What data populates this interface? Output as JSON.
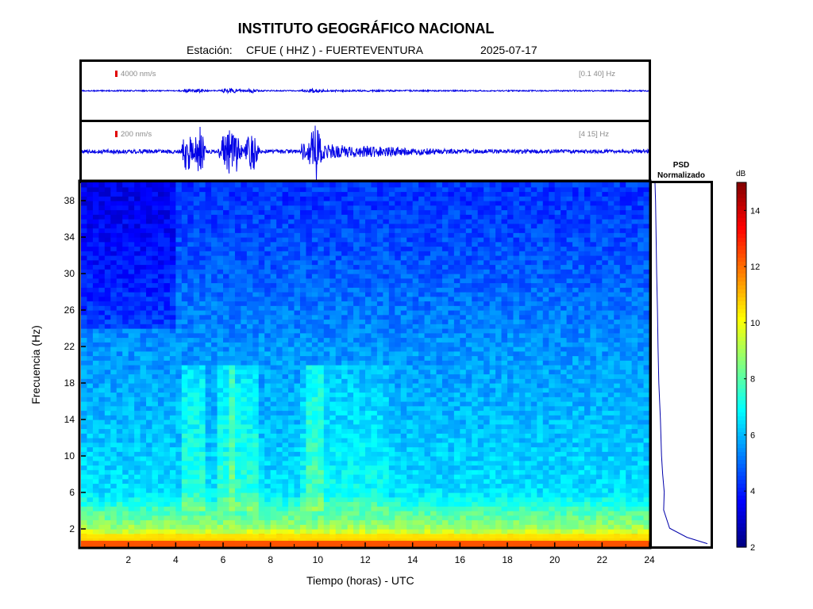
{
  "header": {
    "title": "INSTITUTO GEOGRÁFICO NACIONAL",
    "station_prefix": "Estación:",
    "station": "CFUE ( HHZ ) - FUERTEVENTURA",
    "date": "2025-07-17"
  },
  "traces": [
    {
      "scale": "4000 nm/s",
      "band": "[0.1 40] Hz"
    },
    {
      "scale": "200 nm/s",
      "band": "[4 15] Hz"
    }
  ],
  "psd": {
    "line1": "PSD",
    "line2": "Normalizado"
  },
  "colorbar": {
    "unit": "dB",
    "ticks": [
      "2",
      "4",
      "6",
      "8",
      "10",
      "12",
      "14"
    ],
    "range": [
      2,
      15
    ]
  },
  "colors": {
    "trace": "#0000e6",
    "frame": "#000000",
    "scalebar": "#e00000"
  },
  "chart_data": {
    "type": "heatmap",
    "xlabel": "Tiempo (horas) - UTC",
    "ylabel": "Frecuencia  (Hz)",
    "xlim": [
      0,
      24
    ],
    "ylim": [
      0,
      40
    ],
    "x_ticks": [
      "2",
      "4",
      "6",
      "8",
      "10",
      "12",
      "14",
      "16",
      "18",
      "20",
      "22",
      "24"
    ],
    "y_ticks": [
      "2",
      "6",
      "10",
      "14",
      "18",
      "22",
      "26",
      "30",
      "34",
      "38"
    ],
    "colorscale": "jet",
    "approx_db_by_frequency": [
      {
        "f": 0.5,
        "db": 12
      },
      {
        "f": 2,
        "db": 9
      },
      {
        "f": 6,
        "db": 6.5
      },
      {
        "f": 14,
        "db": 6
      },
      {
        "f": 22,
        "db": 5.5
      },
      {
        "f": 30,
        "db": 4.8
      },
      {
        "f": 38,
        "db": 4.3
      }
    ],
    "psd_profile": [
      {
        "f": 0.3,
        "v": 1.0
      },
      {
        "f": 1,
        "v": 0.62
      },
      {
        "f": 2,
        "v": 0.3
      },
      {
        "f": 4,
        "v": 0.19
      },
      {
        "f": 6,
        "v": 0.2
      },
      {
        "f": 8,
        "v": 0.17
      },
      {
        "f": 10,
        "v": 0.15
      },
      {
        "f": 14,
        "v": 0.13
      },
      {
        "f": 18,
        "v": 0.1
      },
      {
        "f": 22,
        "v": 0.085
      },
      {
        "f": 26,
        "v": 0.075
      },
      {
        "f": 30,
        "v": 0.06
      },
      {
        "f": 34,
        "v": 0.05
      },
      {
        "f": 38,
        "v": 0.04
      },
      {
        "f": 40,
        "v": 0.03
      }
    ],
    "trace_bursts_hours": [
      4.5,
      5.0,
      6.1,
      6.5,
      7.2,
      9.9
    ]
  }
}
